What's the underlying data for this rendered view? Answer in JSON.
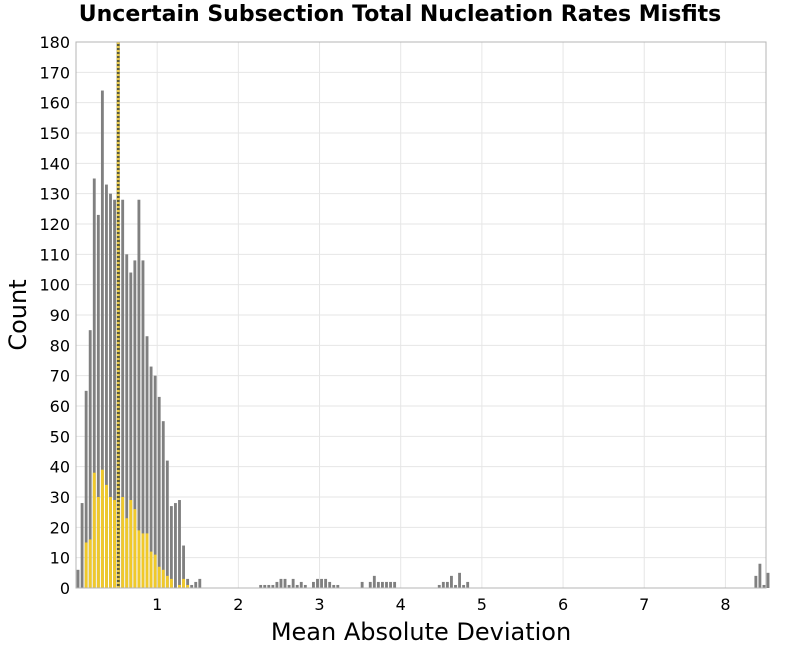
{
  "chart_data": {
    "type": "bar",
    "title": "Uncertain Subsection Total Nucleation Rates Misfits",
    "xlabel": "Mean Absolute Deviation",
    "ylabel": "Count",
    "xlim": [
      0.0,
      8.5
    ],
    "ylim": [
      0,
      180
    ],
    "x_ticks": [
      1,
      2,
      3,
      4,
      5,
      6,
      7,
      8
    ],
    "y_ticks": [
      0,
      10,
      20,
      30,
      40,
      50,
      60,
      70,
      80,
      90,
      100,
      110,
      120,
      130,
      140,
      150,
      160,
      170,
      180
    ],
    "grid": true,
    "bin_width": 0.05,
    "reference_line_x": 0.52,
    "colors": {
      "all": "#808080",
      "highlight": "#f0c92a",
      "ref_line": "#5a5a36",
      "grid": "#e6e6e6",
      "frame": "#b4b4b4"
    },
    "series": [
      {
        "color": "#808080",
        "bins": [
          [
            0.025,
            6
          ],
          [
            0.075,
            28
          ],
          [
            0.125,
            65
          ],
          [
            0.175,
            85
          ],
          [
            0.225,
            135
          ],
          [
            0.275,
            123
          ],
          [
            0.325,
            164
          ],
          [
            0.375,
            133
          ],
          [
            0.425,
            130
          ],
          [
            0.475,
            128
          ],
          [
            0.525,
            115
          ],
          [
            0.575,
            128
          ],
          [
            0.625,
            110
          ],
          [
            0.675,
            104
          ],
          [
            0.725,
            108
          ],
          [
            0.775,
            128
          ],
          [
            0.825,
            108
          ],
          [
            0.875,
            83
          ],
          [
            0.925,
            73
          ],
          [
            0.975,
            70
          ],
          [
            1.025,
            63
          ],
          [
            1.075,
            55
          ],
          [
            1.125,
            42
          ],
          [
            1.175,
            27
          ],
          [
            1.225,
            28
          ],
          [
            1.275,
            29
          ],
          [
            1.325,
            14
          ],
          [
            1.375,
            3
          ],
          [
            1.425,
            1
          ],
          [
            1.475,
            2
          ],
          [
            1.525,
            3
          ],
          [
            2.275,
            1
          ],
          [
            2.325,
            1
          ],
          [
            2.375,
            1
          ],
          [
            2.425,
            1
          ],
          [
            2.475,
            2
          ],
          [
            2.525,
            3
          ],
          [
            2.575,
            3
          ],
          [
            2.625,
            1
          ],
          [
            2.675,
            3
          ],
          [
            2.725,
            1
          ],
          [
            2.775,
            2
          ],
          [
            2.825,
            1
          ],
          [
            2.925,
            2
          ],
          [
            2.975,
            3
          ],
          [
            3.025,
            3
          ],
          [
            3.075,
            3
          ],
          [
            3.125,
            2
          ],
          [
            3.175,
            1
          ],
          [
            3.225,
            1
          ],
          [
            3.525,
            2
          ],
          [
            3.625,
            2
          ],
          [
            3.675,
            4
          ],
          [
            3.725,
            2
          ],
          [
            3.775,
            2
          ],
          [
            3.825,
            2
          ],
          [
            3.875,
            2
          ],
          [
            3.925,
            2
          ],
          [
            4.475,
            1
          ],
          [
            4.525,
            2
          ],
          [
            4.575,
            2
          ],
          [
            4.625,
            4
          ],
          [
            4.675,
            1
          ],
          [
            4.725,
            5
          ],
          [
            4.775,
            1
          ],
          [
            4.825,
            2
          ],
          [
            8.375,
            4
          ],
          [
            8.425,
            8
          ],
          [
            8.475,
            1
          ],
          [
            8.525,
            5
          ]
        ]
      },
      {
        "color": "#f0c92a",
        "bins": [
          [
            0.125,
            15
          ],
          [
            0.175,
            16
          ],
          [
            0.225,
            38
          ],
          [
            0.275,
            30
          ],
          [
            0.325,
            39
          ],
          [
            0.375,
            34
          ],
          [
            0.425,
            30
          ],
          [
            0.475,
            29
          ],
          [
            0.525,
            28
          ],
          [
            0.575,
            30
          ],
          [
            0.625,
            23
          ],
          [
            0.675,
            29
          ],
          [
            0.725,
            26
          ],
          [
            0.775,
            19
          ],
          [
            0.825,
            18
          ],
          [
            0.875,
            18
          ],
          [
            0.925,
            12
          ],
          [
            0.975,
            11
          ],
          [
            1.025,
            7
          ],
          [
            1.075,
            6
          ],
          [
            1.125,
            4
          ],
          [
            1.175,
            3
          ],
          [
            1.275,
            1
          ],
          [
            1.325,
            3
          ],
          [
            1.375,
            1
          ]
        ]
      }
    ]
  }
}
